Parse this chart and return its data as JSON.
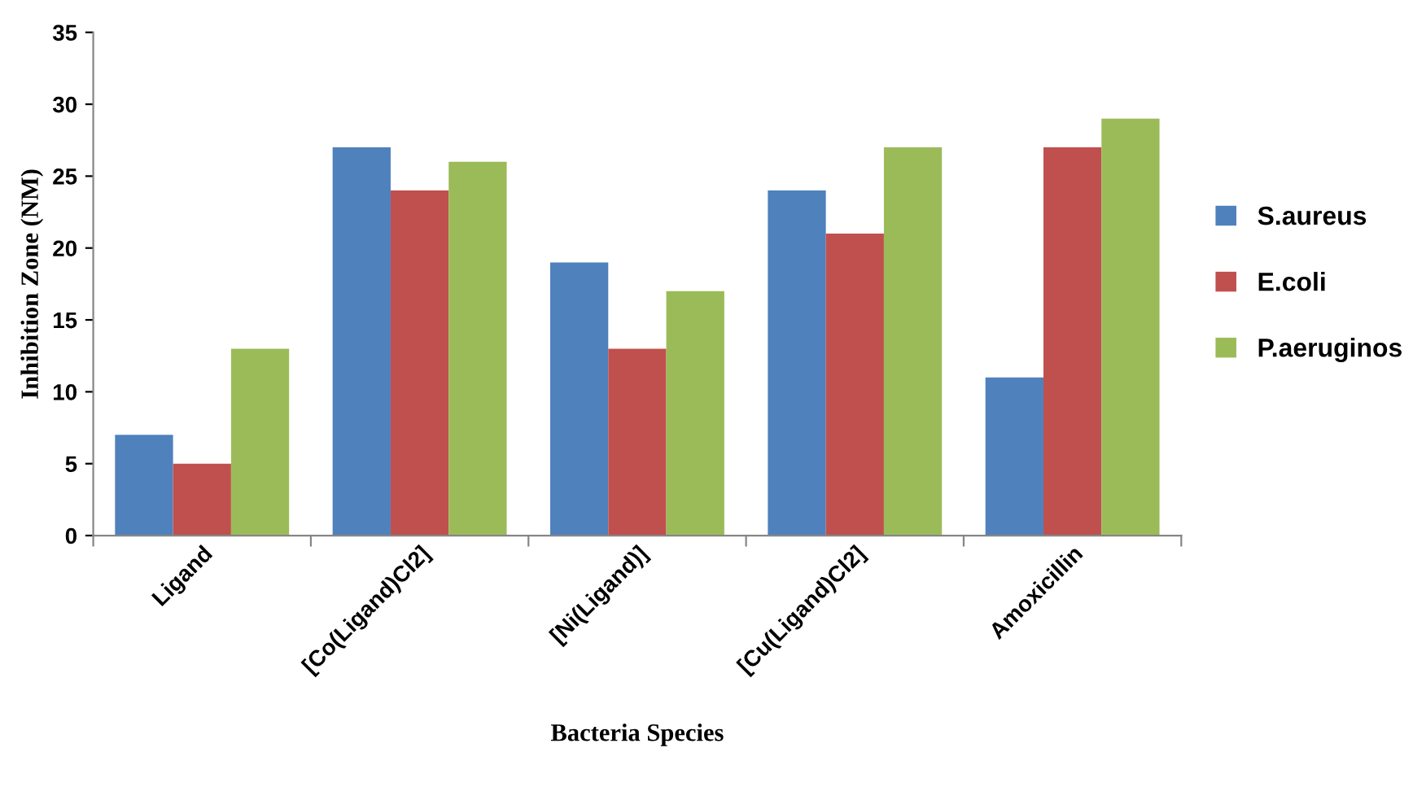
{
  "chart_data": {
    "type": "bar",
    "xlabel": "Bacteria Species",
    "ylabel": "Inhibition Zone (NM)",
    "categories": [
      "Ligand",
      "[Co(Ligand)Cl2]",
      "[Ni(Ligand)]",
      "[Cu(Ligand)Cl2]",
      "Amoxicillin"
    ],
    "series": [
      {
        "name": "S.aureus",
        "color": "#4f81bd",
        "values": [
          7,
          27,
          19,
          24,
          11
        ]
      },
      {
        "name": "E.coli",
        "color": "#c0504d",
        "values": [
          5,
          24,
          13,
          21,
          27
        ]
      },
      {
        "name": "P.aeruginos",
        "color": "#9bbb59",
        "values": [
          13,
          26,
          17,
          27,
          29
        ]
      }
    ],
    "ylim": [
      0,
      35
    ],
    "yticks": [
      0,
      5,
      10,
      15,
      20,
      25,
      30,
      35
    ],
    "grid": false,
    "legend": "right"
  }
}
